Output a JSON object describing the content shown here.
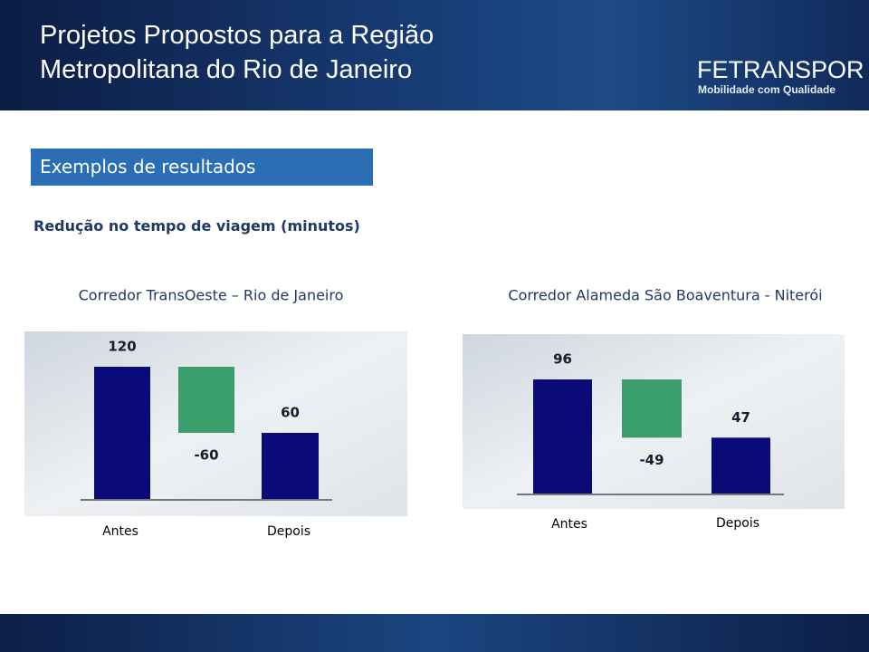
{
  "header": {
    "title": "Projetos Propostos para a Região Metropolitana do Rio de Janeiro",
    "logo": "FETRANSPOR",
    "tagline": "Mobilidade com Qualidade"
  },
  "section_title": "Exemplos de resultados",
  "subtitle": "Redução no tempo de viagem (minutos)",
  "chart_data": [
    {
      "type": "waterfall",
      "title": "Corredor TransOeste – Rio de Janeiro",
      "categories": [
        "Antes",
        null,
        "Depois"
      ],
      "values": [
        120,
        -60,
        60
      ],
      "colors": [
        "#0a0a78",
        "#3a9f6c",
        "#0a0a78"
      ]
    },
    {
      "type": "waterfall",
      "title": "Corredor Alameda São Boaventura - Niterói",
      "categories": [
        "Antes",
        null,
        "Depois"
      ],
      "values": [
        96,
        -49,
        47
      ],
      "colors": [
        "#0a0a78",
        "#3a9f6c",
        "#0a0a78"
      ]
    }
  ]
}
